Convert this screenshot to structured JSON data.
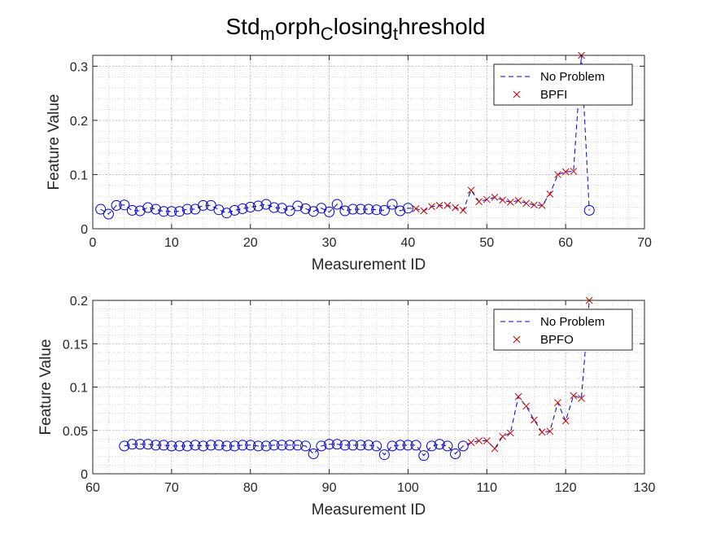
{
  "chart_data": [
    {
      "type": "line",
      "title_parts": [
        {
          "text": "Std",
          "sub": false
        },
        {
          "text": "m",
          "sub": true
        },
        {
          "text": "orph",
          "sub": false
        },
        {
          "text": "C",
          "sub": true
        },
        {
          "text": "losing",
          "sub": false
        },
        {
          "text": "t",
          "sub": true
        },
        {
          "text": "hreshold",
          "sub": false
        }
      ],
      "xlabel": "Measurement ID",
      "ylabel": "Feature Value",
      "xlim": [
        0,
        70
      ],
      "ylim": [
        0,
        0.32
      ],
      "xticks": [
        0,
        10,
        20,
        30,
        40,
        50,
        60,
        70
      ],
      "xtick_labels": [
        "0",
        "10",
        "20",
        "30",
        "40",
        "50",
        "60",
        "70"
      ],
      "yticks": [
        0,
        0.1,
        0.2,
        0.3
      ],
      "ytick_labels": [
        "0",
        "0.1",
        "0.2",
        "0.3"
      ],
      "grid": true,
      "legend_position": "top-right",
      "series": [
        {
          "name": "No Problem",
          "style": "dashed-line-circles",
          "color": "#0000CC",
          "x": [
            1,
            2,
            3,
            4,
            5,
            6,
            7,
            8,
            9,
            10,
            11,
            12,
            13,
            14,
            15,
            16,
            17,
            18,
            19,
            20,
            21,
            22,
            23,
            24,
            25,
            26,
            27,
            28,
            29,
            30,
            31,
            32,
            33,
            34,
            35,
            36,
            37,
            38,
            39,
            40
          ],
          "y": [
            0.036,
            0.027,
            0.043,
            0.044,
            0.034,
            0.033,
            0.039,
            0.036,
            0.032,
            0.032,
            0.032,
            0.036,
            0.036,
            0.043,
            0.043,
            0.035,
            0.029,
            0.034,
            0.037,
            0.04,
            0.042,
            0.045,
            0.039,
            0.038,
            0.033,
            0.042,
            0.037,
            0.032,
            0.038,
            0.031,
            0.045,
            0.033,
            0.036,
            0.036,
            0.036,
            0.035,
            0.034,
            0.045,
            0.033,
            0.038
          ]
        },
        {
          "name": "BPFI",
          "style": "dashed-line-x",
          "color": "#CC0000",
          "x": [
            41,
            42,
            43,
            44,
            45,
            46,
            47,
            48,
            49,
            50,
            51,
            52,
            53,
            54,
            55,
            56,
            57,
            58,
            59,
            60,
            61,
            62
          ],
          "y": [
            0.037,
            0.033,
            0.041,
            0.043,
            0.043,
            0.039,
            0.034,
            0.071,
            0.05,
            0.054,
            0.058,
            0.053,
            0.049,
            0.052,
            0.047,
            0.044,
            0.043,
            0.064,
            0.1,
            0.105,
            0.106,
            0.32
          ]
        },
        {
          "name": "",
          "style": "circle-marker",
          "color": "#0000CC",
          "x": [
            63
          ],
          "y": [
            0.034
          ]
        }
      ]
    },
    {
      "type": "line",
      "xlabel": "Measurement ID",
      "ylabel": "Feature Value",
      "xlim": [
        60,
        130
      ],
      "ylim": [
        0,
        0.2
      ],
      "xticks": [
        60,
        70,
        80,
        90,
        100,
        110,
        120,
        130
      ],
      "xtick_labels": [
        "60",
        "70",
        "80",
        "90",
        "100",
        "110",
        "120",
        "130"
      ],
      "yticks": [
        0,
        0.05,
        0.1,
        0.15,
        0.2
      ],
      "ytick_labels": [
        "0",
        "0.05",
        "0.1",
        "0.15",
        "0.2"
      ],
      "grid": true,
      "legend_position": "top-right",
      "series": [
        {
          "name": "No Problem",
          "style": "dashed-line-circles",
          "color": "#0000CC",
          "x": [
            64,
            65,
            66,
            67,
            68,
            69,
            70,
            71,
            72,
            73,
            74,
            75,
            76,
            77,
            78,
            79,
            80,
            81,
            82,
            83,
            84,
            85,
            86,
            87,
            88,
            89,
            90,
            91,
            92,
            93,
            94,
            95,
            96,
            97,
            98,
            99,
            100,
            101,
            102,
            103,
            104,
            105,
            106,
            107
          ],
          "y": [
            0.032,
            0.034,
            0.034,
            0.034,
            0.033,
            0.033,
            0.032,
            0.032,
            0.032,
            0.033,
            0.032,
            0.033,
            0.033,
            0.032,
            0.032,
            0.033,
            0.033,
            0.032,
            0.032,
            0.033,
            0.033,
            0.033,
            0.033,
            0.032,
            0.023,
            0.032,
            0.034,
            0.034,
            0.033,
            0.033,
            0.033,
            0.033,
            0.032,
            0.022,
            0.032,
            0.033,
            0.033,
            0.033,
            0.021,
            0.032,
            0.034,
            0.032,
            0.023,
            0.032
          ]
        },
        {
          "name": "BPFO",
          "style": "dashed-line-x",
          "color": "#CC0000",
          "x": [
            108,
            109,
            110,
            111,
            112,
            113,
            114,
            115,
            116,
            117,
            118,
            119,
            120,
            121,
            122,
            123
          ],
          "y": [
            0.036,
            0.038,
            0.038,
            0.029,
            0.043,
            0.047,
            0.089,
            0.078,
            0.062,
            0.048,
            0.049,
            0.082,
            0.061,
            0.09,
            0.087,
            0.2
          ]
        }
      ]
    }
  ]
}
